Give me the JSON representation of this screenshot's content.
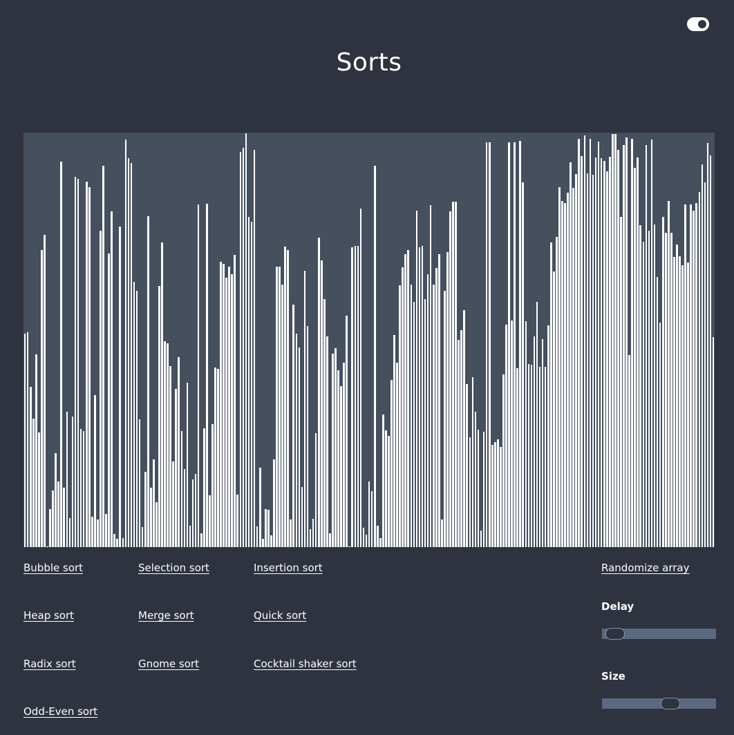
{
  "header": {
    "title": "Sorts"
  },
  "theme_toggle": {
    "icon": "toggle-switch-icon",
    "state": "on"
  },
  "sorts": [
    "Bubble sort",
    "Selection sort",
    "Insertion sort",
    "Heap sort",
    "Merge sort",
    "Quick sort",
    "Radix sort",
    "Gnome sort",
    "Cocktail shaker sort",
    "Odd-Even sort"
  ],
  "controls": {
    "randomize_label": "Randomize array",
    "delay_label": "Delay",
    "delay_value": 0.04,
    "size_label": "Size",
    "size_value": 0.62
  },
  "colors": {
    "background": "#2e333f",
    "plot_background": "#454f5e",
    "bar": "#ffffff",
    "slider_track": "#5a6880"
  },
  "array": {
    "max": 600,
    "values": [
      309,
      311,
      232,
      186,
      279,
      166,
      430,
      452,
      1,
      55,
      82,
      136,
      95,
      558,
      86,
      196,
      42,
      189,
      536,
      533,
      171,
      168,
      529,
      521,
      44,
      220,
      40,
      458,
      552,
      48,
      425,
      486,
      19,
      12,
      464,
      13,
      590,
      563,
      556,
      384,
      371,
      185,
      29,
      109,
      479,
      86,
      127,
      65,
      378,
      441,
      298,
      295,
      262,
      124,
      229,
      275,
      168,
      113,
      238,
      31,
      98,
      106,
      496,
      20,
      172,
      497,
      75,
      178,
      260,
      258,
      413,
      410,
      390,
      406,
      395,
      423,
      76,
      572,
      578,
      599,
      478,
      471,
      575,
      30,
      115,
      12,
      55,
      54,
      17,
      127,
      406,
      406,
      380,
      435,
      430,
      40,
      351,
      309,
      289,
      87,
      400,
      320,
      26,
      41,
      165,
      448,
      415,
      359,
      305,
      20,
      280,
      288,
      256,
      233,
      267,
      335,
      1,
      434,
      436,
      436,
      490,
      28,
      18,
      95,
      81,
      552,
      31,
      13,
      192,
      169,
      161,
      242,
      307,
      267,
      379,
      405,
      424,
      430,
      380,
      355,
      487,
      434,
      436,
      359,
      395,
      495,
      380,
      404,
      424,
      40,
      371,
      427,
      486,
      500,
      500,
      300,
      314,
      343,
      236,
      159,
      246,
      196,
      170,
      24,
      167,
      586,
      586,
      148,
      152,
      156,
      145,
      250,
      322,
      586,
      328,
      586,
      259,
      588,
      528,
      327,
      265,
      264,
      305,
      355,
      261,
      301,
      261,
      321,
      441,
      399,
      449,
      521,
      501,
      498,
      513,
      557,
      520,
      540,
      591,
      566,
      596,
      541,
      591,
      539,
      564,
      587,
      563,
      559,
      544,
      565,
      598,
      598,
      575,
      478,
      582,
      593,
      278,
      591,
      549,
      564,
      466,
      442,
      582,
      458,
      590,
      467,
      391,
      325,
      478,
      455,
      501,
      455,
      420,
      438,
      421,
      408,
      496,
      412,
      496,
      487,
      498,
      514,
      554,
      528,
      585,
      567,
      304
    ]
  }
}
